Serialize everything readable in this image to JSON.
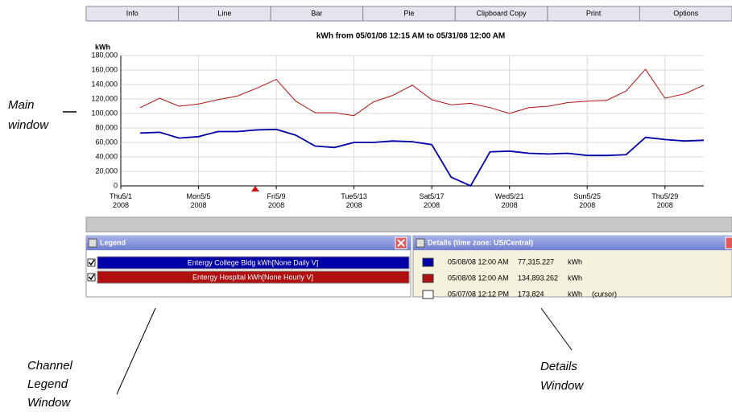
{
  "toolbar": [
    "Info",
    "Line",
    "Bar",
    "Pie",
    "Clipboard Copy",
    "Print",
    "Options"
  ],
  "chart_data": {
    "type": "line",
    "title": "kWh from 05/01/08 12:15 AM to 05/31/08 12:00 AM",
    "y_label": "kWh",
    "x": [
      2,
      3,
      4,
      5,
      6,
      7,
      8,
      9,
      10,
      11,
      12,
      13,
      14,
      15,
      16,
      17,
      18,
      19,
      20,
      21,
      22,
      23,
      24,
      25,
      26,
      27,
      28,
      29,
      30,
      31
    ],
    "series": [
      {
        "name": "Entergy College Bldg kWh[None Daily  V]",
        "color": "#0000a8",
        "values": [
          73000,
          74000,
          66000,
          68000,
          75000,
          75000,
          77315,
          78000,
          70000,
          55000,
          53000,
          60000,
          60000,
          62000,
          61000,
          57000,
          12000,
          0,
          47000,
          48000,
          45000,
          44000,
          45000,
          42000,
          42000,
          43000,
          67000,
          64000,
          62000,
          63000
        ]
      },
      {
        "name": "Entergy Hospital kWh[None Hourly  V]",
        "color": "#b01010",
        "values": [
          108000,
          121000,
          110000,
          113000,
          119000,
          124000,
          134893,
          147000,
          117000,
          101000,
          101000,
          97000,
          116000,
          125000,
          139000,
          119000,
          112000,
          114000,
          108000,
          100000,
          108000,
          110000,
          115000,
          117000,
          118000,
          131000,
          161000,
          121000,
          127000,
          139000
        ]
      }
    ],
    "xlim": [
      1,
      31
    ],
    "xticks": [
      {
        "value": 1,
        "label": "Thu5/1\n2008"
      },
      {
        "value": 5,
        "label": "Mon5/5\n2008"
      },
      {
        "value": 9,
        "label": "Fri5/9\n2008"
      },
      {
        "value": 13,
        "label": "Tue5/13\n2008"
      },
      {
        "value": 17,
        "label": "Sat5/17\n2008"
      },
      {
        "value": 21,
        "label": "Wed5/21\n2008"
      },
      {
        "value": 25,
        "label": "Sun5/25\n2008"
      },
      {
        "value": 29,
        "label": "Thu5/29\n2008"
      }
    ],
    "ylim": [
      0,
      180000
    ],
    "yticks": [
      0,
      {
        "value": 20000,
        "label": "20,000"
      },
      {
        "value": 40000,
        "label": "40,000"
      },
      {
        "value": 60000,
        "label": "60,000"
      },
      {
        "value": 80000,
        "label": "80,000"
      },
      {
        "value": 100000,
        "label": "100,000"
      },
      {
        "value": 120000,
        "label": "120,000"
      },
      {
        "value": 140000,
        "label": "140,000"
      },
      {
        "value": 160000,
        "label": "160,000"
      },
      {
        "value": 180000,
        "label": "180,000"
      }
    ],
    "grid": true
  },
  "legend": {
    "title": "Legend"
  },
  "details": {
    "title": "Details  (time zone: US/Central)",
    "rows": [
      [
        "05/08/08 12:00 AM",
        "77,315.227",
        "kWh",
        ""
      ],
      [
        "05/08/08 12:00 AM",
        "134,893.262",
        "kWh",
        ""
      ],
      [
        "05/07/08 12:12 PM",
        "173,824",
        "kWh",
        "(cursor)"
      ]
    ],
    "colors": [
      "#0000a8",
      "#b01010",
      "#ffffff"
    ]
  },
  "annotations": {
    "main": [
      "Main",
      "window"
    ],
    "legend": [
      "Channel",
      "Legend",
      "Window"
    ],
    "details": [
      "Details",
      "Window"
    ]
  }
}
